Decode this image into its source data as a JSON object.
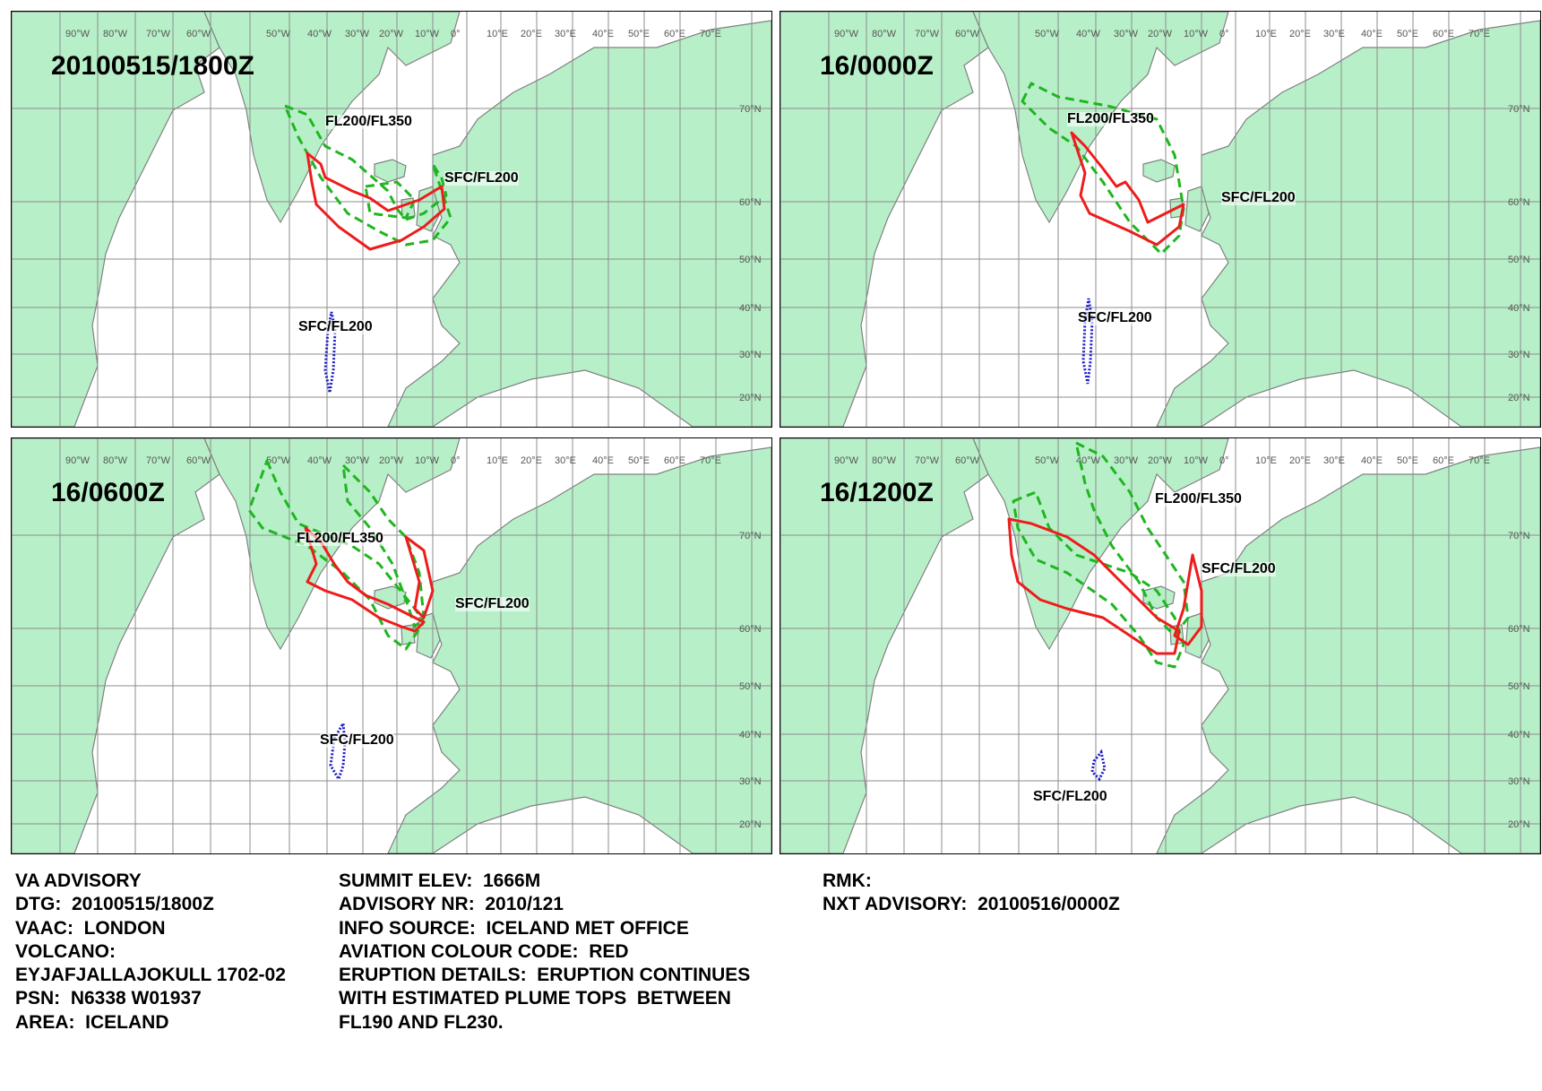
{
  "colors": {
    "land": "#b7f0c8",
    "coast": "#808080",
    "grid": "#8c8c8c",
    "fl200_fl350": "#1fb61f",
    "sfc_fl200": "#ee1c1c",
    "secondary_area": "#1c1cc8"
  },
  "axis": {
    "lon_labels": [
      "50°W",
      "40°W",
      "30°W",
      "20°W",
      "10°W",
      "0°",
      "10°E",
      "20°E",
      "30°E",
      "40°E",
      "50°E",
      "60°E",
      "70°E"
    ],
    "left_lon_labels": [
      "90°W",
      "80°W",
      "70°W",
      "60°W"
    ],
    "lat_labels": [
      "70°N",
      "60°N",
      "50°N",
      "40°N",
      "30°N",
      "20°N"
    ]
  },
  "panels": [
    {
      "timestamp": "20100515/1800Z",
      "labels": {
        "fl200_fl350": "FL200/FL350",
        "sfc_fl200_main": "SFC/FL200",
        "sfc_fl200_south": "SFC/FL200"
      }
    },
    {
      "timestamp": "16/0000Z",
      "labels": {
        "fl200_fl350": "FL200/FL350",
        "sfc_fl200_main": "SFC/FL200",
        "sfc_fl200_south": "SFC/FL200"
      }
    },
    {
      "timestamp": "16/0600Z",
      "labels": {
        "fl200_fl350": "FL200/FL350",
        "sfc_fl200_main": "SFC/FL200",
        "sfc_fl200_south": "SFC/FL200"
      }
    },
    {
      "timestamp": "16/1200Z",
      "labels": {
        "fl200_fl350": "FL200/FL350",
        "sfc_fl200_main": "SFC/FL200",
        "sfc_fl200_south": "SFC/FL200"
      }
    }
  ],
  "advisory": {
    "col1": [
      "VA ADVISORY",
      "DTG:  20100515/1800Z",
      "VAAC:  LONDON",
      "VOLCANO:",
      "EYJAFJALLAJOKULL 1702-02",
      "PSN:  N6338 W01937",
      "AREA:  ICELAND"
    ],
    "col2": [
      "SUMMIT ELEV:  1666M",
      "ADVISORY NR:  2010/121",
      "INFO SOURCE:  ICELAND MET OFFICE",
      "AVIATION COLOUR CODE:  RED",
      "ERUPTION DETAILS:  ERUPTION CONTINUES",
      "WITH ESTIMATED PLUME TOPS  BETWEEN",
      "FL190 AND FL230."
    ],
    "col3": [
      "RMK:",
      "NXT ADVISORY:  20100516/0000Z"
    ]
  }
}
